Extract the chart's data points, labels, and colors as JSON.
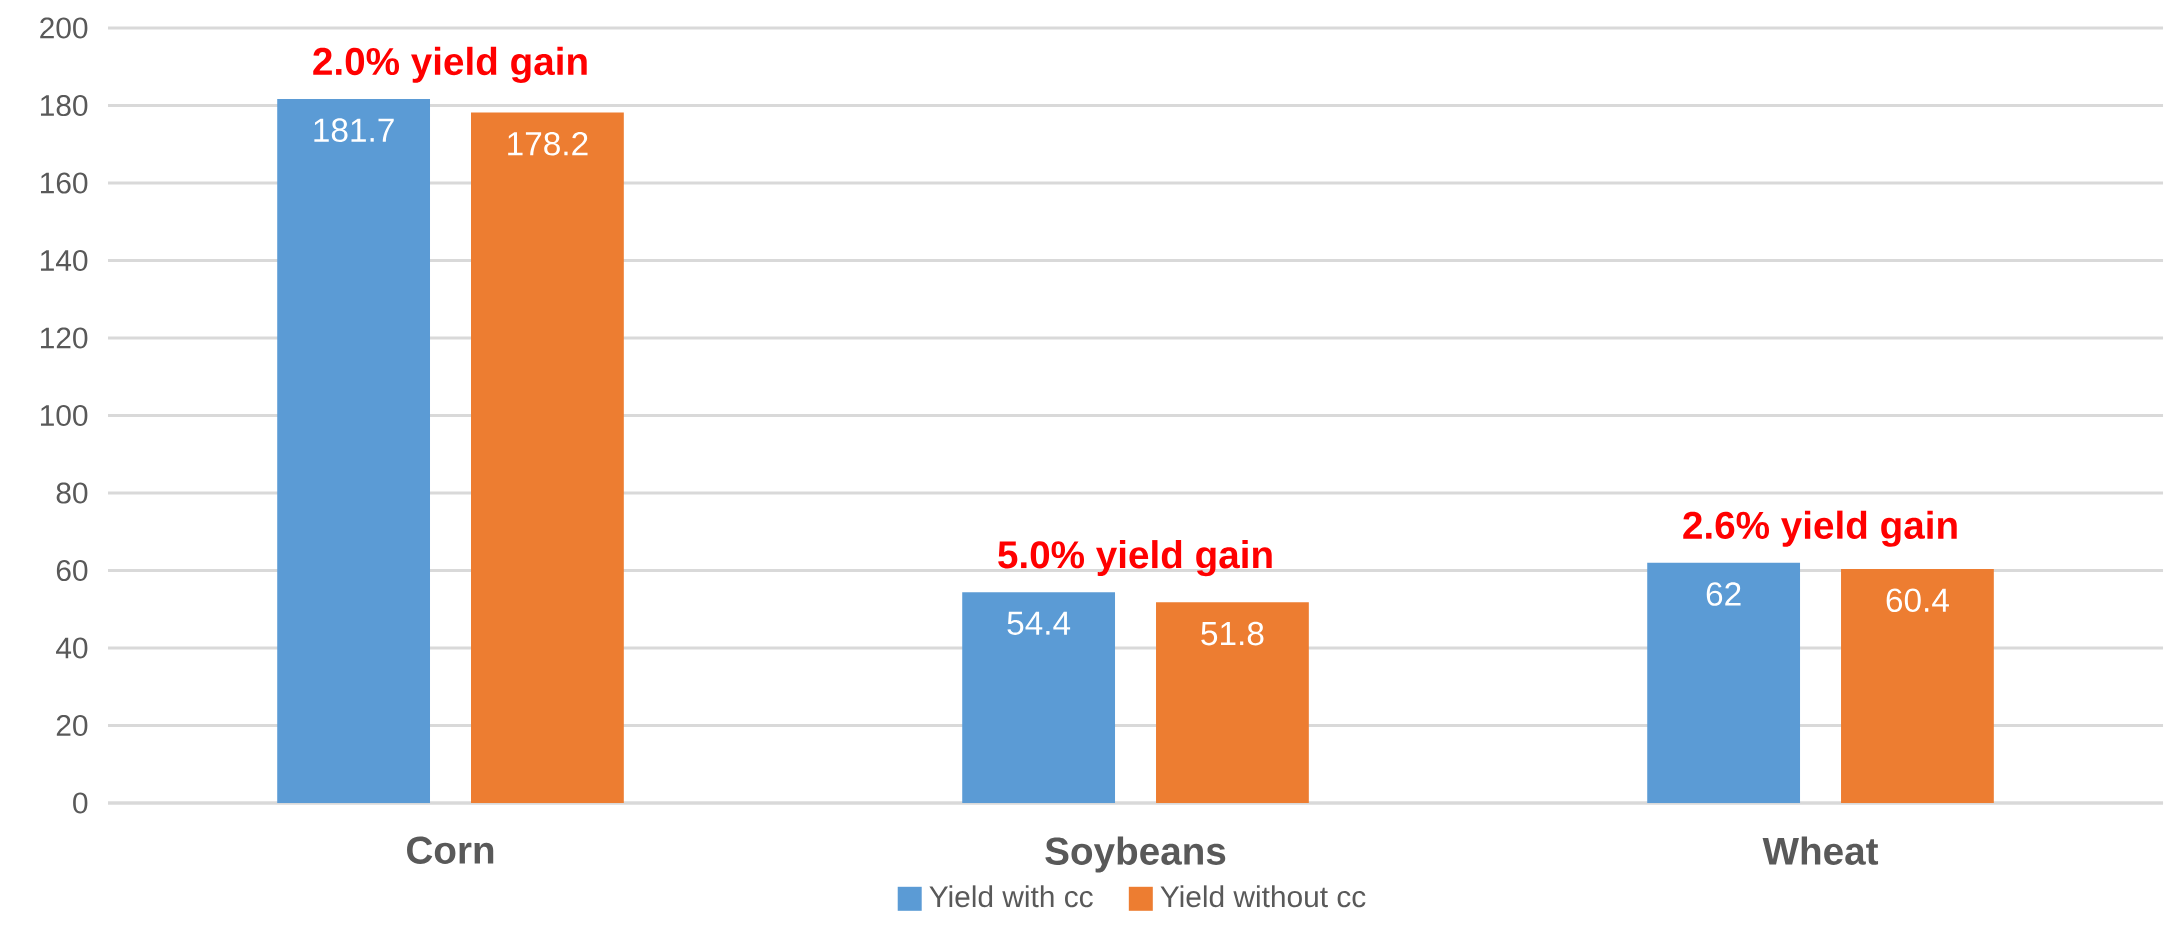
{
  "chart_data": {
    "type": "bar",
    "categories": [
      "Corn",
      "Soybeans",
      "Wheat"
    ],
    "series": [
      {
        "name": "Yield with cc",
        "color": "#5b9bd5",
        "values": [
          181.7,
          54.4,
          62
        ]
      },
      {
        "name": "Yield without cc",
        "color": "#ed7d31",
        "values": [
          178.2,
          51.8,
          60.4
        ]
      }
    ],
    "ylim": [
      0,
      200
    ],
    "yticks": [
      0,
      20,
      40,
      60,
      80,
      100,
      120,
      140,
      160,
      180,
      200
    ],
    "grid": "y",
    "legend": "bottom",
    "data_labels": true,
    "annotations": [
      "2.0% yield gain",
      "5.0% yield gain",
      "2.6% yield gain"
    ]
  }
}
